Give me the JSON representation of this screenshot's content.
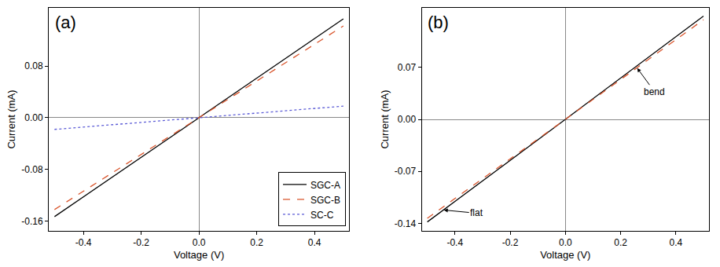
{
  "chart_data": [
    {
      "type": "line",
      "title": "(a)",
      "x_label": "Voltage (V)",
      "y_label": "Current (mA)",
      "x": [
        -0.5,
        0,
        0.5
      ],
      "series": [
        {
          "name": "SGC-A",
          "color": "#000000",
          "line_style": "solid",
          "values": [
            -0.153,
            0,
            0.153
          ]
        },
        {
          "name": "SGC-B",
          "color": "#d9542b",
          "line_style": "dash",
          "values": [
            -0.142,
            0,
            0.142
          ]
        },
        {
          "name": "SC-C",
          "color": "#5b5bd6",
          "line_style": "dot",
          "values": [
            -0.018,
            0,
            0.018
          ]
        }
      ],
      "xlim": [
        -0.52,
        0.52
      ],
      "xticks": [
        -0.4,
        -0.2,
        {
          "value": 0,
          "label": "0.0"
        },
        0.2,
        0.4
      ],
      "ylim": [
        -0.175,
        0.17
      ],
      "yticks": [
        -0.16,
        -0.08,
        {
          "value": 0,
          "label": "0.00"
        },
        0.08
      ],
      "legend": "bottom right"
    },
    {
      "type": "line",
      "title": "(b)",
      "x_label": "Voltage (V)",
      "y_label": "Current (mA)",
      "x": [
        -0.5,
        0,
        0.5
      ],
      "series": [
        {
          "color": "#000000",
          "line_style": "solid",
          "values": [
            -0.138,
            0,
            0.139
          ]
        },
        {
          "color": "#d9542b",
          "line_style": "dash",
          "values": [
            -0.133,
            0,
            0.134
          ]
        }
      ],
      "annotations": [
        {
          "text": "bend",
          "x": 0.26,
          "y": 0.069
        },
        {
          "text": "flat",
          "x": -0.44,
          "y": -0.122
        }
      ],
      "xlim": [
        -0.52,
        0.52
      ],
      "xticks": [
        -0.4,
        -0.2,
        {
          "value": 0,
          "label": "0.0"
        },
        0.2,
        0.4
      ],
      "ylim": [
        -0.15,
        0.15
      ],
      "yticks": [
        -0.14,
        -0.07,
        {
          "value": 0,
          "label": "0.00"
        },
        0.07
      ]
    }
  ]
}
